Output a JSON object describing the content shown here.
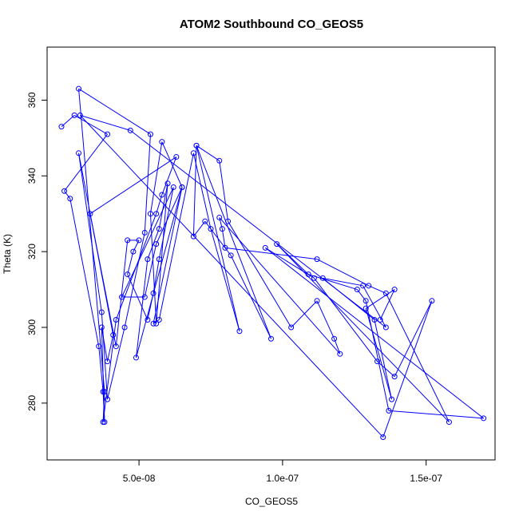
{
  "colors": {
    "series": "#0000ff",
    "axis": "#000000",
    "background": "#ffffff"
  },
  "chart_data": {
    "type": "scatter",
    "title": "ATOM2 Southbound CO_GEOS5",
    "xlabel": "CO_GEOS5",
    "ylabel": "Theta (K)",
    "xlim": [
      1.8e-08,
      1.74e-07
    ],
    "ylim": [
      265,
      374
    ],
    "x_ticks": [
      5e-08,
      1e-07,
      1.5e-07
    ],
    "x_tick_labels": [
      "5.0e-08",
      "1.0e-07",
      "1.5e-07"
    ],
    "y_ticks": [
      280,
      300,
      320,
      340,
      360
    ],
    "y_tick_labels": [
      "280",
      "300",
      "320",
      "340",
      "360"
    ],
    "grid": false,
    "legend": "none",
    "marker": "open-circle",
    "connect_points": true,
    "series": [
      {
        "x": [
          2.3e-08,
          2.75e-08,
          3.9e-08,
          2.4e-08,
          2.6e-08,
          3.6e-08,
          3.75e-08,
          3.8e-08,
          3.7e-08,
          3.9e-08,
          4.1e-08,
          2.9e-08,
          3.7e-08,
          3.9e-08,
          4.5e-08,
          5.2e-08,
          5.4e-08,
          2.9e-08,
          3.8e-08,
          3.75e-08,
          4.2e-08,
          5.6e-08,
          5.8e-08,
          6.3e-08,
          3.3e-08,
          4.2e-08,
          4.6e-08,
          5e-08,
          4.8e-08,
          4.6e-08,
          5.3e-08,
          5.5e-08,
          5.7e-08,
          6.2e-08,
          4.4e-08,
          5.2e-08,
          5.6e-08,
          6.5e-08,
          4.9e-08,
          5.3e-08,
          5.7e-08,
          6e-08,
          5.6e-08,
          5.4e-08,
          5.8e-08,
          6.5e-08,
          5.5e-08,
          5.7e-08,
          6.9e-08,
          7.5e-08,
          8.5e-08,
          7e-08,
          6.9e-08,
          7.3e-08,
          8.2e-08,
          9.6e-08,
          7e-08,
          7.8e-08,
          8.1e-08,
          1.03e-07,
          1.12e-07,
          1.18e-07,
          1.2e-07,
          7.8e-08,
          7.9e-08,
          8e-08,
          1.12e-07,
          1.3e-07,
          1.36e-07,
          1.58e-07,
          9.8e-08,
          1.09e-07,
          1.26e-07,
          1.29e-07,
          1.37e-07,
          1.7e-07,
          9.4e-08,
          1.11e-07,
          1.33e-07,
          1.39e-07,
          1.52e-07,
          1.35e-07,
          2.95e-08,
          4.7e-08,
          1.36e-07,
          1.28e-07,
          1.14e-07,
          1.32e-07,
          1.38e-07,
          1.29e-07,
          1.39e-07,
          1.34e-07
        ]
      },
      {
        "y": [
          353,
          356,
          351,
          336,
          334,
          295,
          283,
          275,
          300,
          291,
          298,
          346,
          304,
          281,
          300,
          325,
          351,
          363,
          283,
          275,
          302,
          330,
          335,
          345,
          330,
          295,
          323,
          323,
          320,
          314,
          302,
          309,
          318,
          337,
          308,
          308,
          322,
          337,
          292,
          318,
          326,
          338,
          301,
          330,
          349,
          337,
          301,
          302,
          346,
          326,
          299,
          348,
          324,
          328,
          319,
          297,
          348,
          344,
          328,
          300,
          307,
          297,
          293,
          329,
          326,
          321,
          318,
          311,
          309,
          275,
          322,
          314,
          310,
          307,
          278,
          276,
          321,
          313,
          291,
          287,
          307,
          271,
          356,
          352,
          300,
          311,
          313,
          302,
          281,
          305,
          310,
          302
        ]
      }
    ]
  }
}
